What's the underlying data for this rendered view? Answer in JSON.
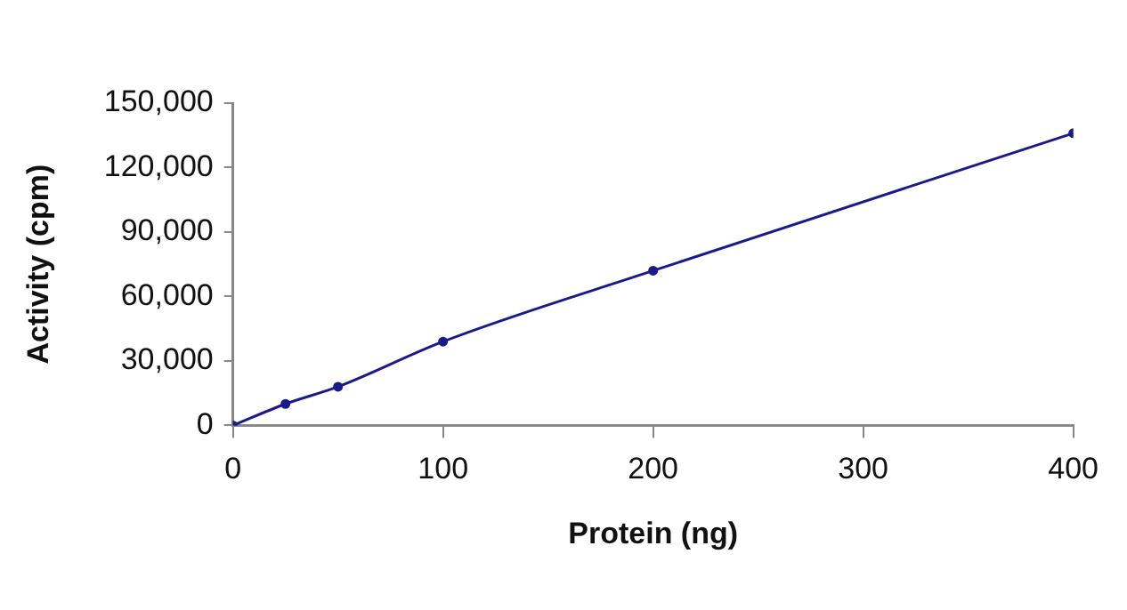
{
  "chart_data": {
    "type": "line",
    "xlabel": "Protein (ng)",
    "ylabel": "Activity (cpm)",
    "x": [
      0,
      25,
      50,
      100,
      200,
      400
    ],
    "series": [
      {
        "color": "#1a1a8c",
        "values": [
          0,
          10000,
          18000,
          39000,
          72000,
          136000
        ]
      }
    ],
    "xlim": [
      0,
      400
    ],
    "xticks": [
      0,
      100,
      200,
      300,
      400
    ],
    "ylim": [
      0,
      150000
    ],
    "yticks": [
      {
        "value": 0,
        "label": "0"
      },
      {
        "value": 30000,
        "label": "30,000"
      },
      {
        "value": 60000,
        "label": "60,000"
      },
      {
        "value": 90000,
        "label": "90,000"
      },
      {
        "value": 120000,
        "label": "120,000"
      },
      {
        "value": 150000,
        "label": "150,000"
      }
    ],
    "grid": false,
    "legend": false,
    "marker": "circle",
    "line_style": "solid"
  }
}
